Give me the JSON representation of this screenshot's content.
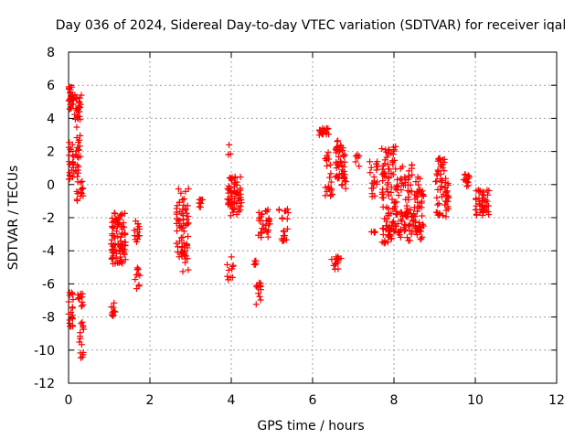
{
  "chart_data": {
    "type": "scatter",
    "title": "Day 036 of 2024, Sidereal Day-to-day VTEC variation (SDTVAR) for receiver iqal",
    "xlabel": "GPS time / hours",
    "ylabel": "SDTVAR / TECUs",
    "xlim": [
      0,
      12
    ],
    "ylim": [
      -12,
      8
    ],
    "xticks": [
      0,
      2,
      4,
      6,
      8,
      10,
      12
    ],
    "yticks": [
      -12,
      -10,
      -8,
      -6,
      -4,
      -2,
      0,
      2,
      4,
      6,
      8
    ],
    "grid": true,
    "marker": "+",
    "color": "#ff0000",
    "series": [
      {
        "name": "SDTVAR",
        "clusters": [
          {
            "x": [
              0.0,
              0.12
            ],
            "y": [
              4.5,
              6.0
            ],
            "n": 30
          },
          {
            "x": [
              0.15,
              0.32
            ],
            "y": [
              3.8,
              5.5
            ],
            "n": 25
          },
          {
            "x": [
              0.0,
              0.25
            ],
            "y": [
              0.3,
              2.6
            ],
            "n": 35
          },
          {
            "x": [
              0.18,
              0.38
            ],
            "y": [
              -1.0,
              0.2
            ],
            "n": 15
          },
          {
            "x": [
              0.2,
              0.3
            ],
            "y": [
              1.5,
              3.5
            ],
            "n": 10
          },
          {
            "x": [
              0.0,
              0.12
            ],
            "y": [
              -8.6,
              -6.2
            ],
            "n": 20
          },
          {
            "x": [
              0.22,
              0.38
            ],
            "y": [
              -7.5,
              -6.6
            ],
            "n": 12
          },
          {
            "x": [
              0.25,
              0.38
            ],
            "y": [
              -11.5,
              -8.2
            ],
            "n": 15
          },
          {
            "x": [
              1.05,
              1.4
            ],
            "y": [
              -4.8,
              -1.6
            ],
            "n": 90
          },
          {
            "x": [
              1.05,
              1.15
            ],
            "y": [
              -8.0,
              -7.1
            ],
            "n": 10
          },
          {
            "x": [
              1.6,
              1.75
            ],
            "y": [
              -3.5,
              -2.2
            ],
            "n": 15
          },
          {
            "x": [
              1.6,
              1.75
            ],
            "y": [
              -6.5,
              -5.0
            ],
            "n": 10
          },
          {
            "x": [
              2.65,
              2.95
            ],
            "y": [
              -4.5,
              -0.2
            ],
            "n": 55
          },
          {
            "x": [
              2.75,
              2.95
            ],
            "y": [
              -5.3,
              -3.5
            ],
            "n": 15
          },
          {
            "x": [
              3.2,
              3.3
            ],
            "y": [
              -1.4,
              -0.9
            ],
            "n": 8
          },
          {
            "x": [
              3.9,
              4.25
            ],
            "y": [
              -2.0,
              0.5
            ],
            "n": 60
          },
          {
            "x": [
              3.9,
              4.05
            ],
            "y": [
              -5.8,
              -4.0
            ],
            "n": 10
          },
          {
            "x": [
              3.92,
              3.98
            ],
            "y": [
              1.8,
              2.7
            ],
            "n": 3
          },
          {
            "x": [
              4.55,
              4.65
            ],
            "y": [
              -5.0,
              -4.6
            ],
            "n": 5
          },
          {
            "x": [
              4.6,
              4.75
            ],
            "y": [
              -7.3,
              -5.9
            ],
            "n": 12
          },
          {
            "x": [
              4.65,
              4.95
            ],
            "y": [
              -3.3,
              -1.5
            ],
            "n": 30
          },
          {
            "x": [
              5.15,
              5.4
            ],
            "y": [
              -3.5,
              -1.4
            ],
            "n": 20
          },
          {
            "x": [
              6.15,
              6.4
            ],
            "y": [
              2.9,
              3.4
            ],
            "n": 20
          },
          {
            "x": [
              6.3,
              6.5
            ],
            "y": [
              -0.7,
              0.3
            ],
            "n": 12
          },
          {
            "x": [
              6.3,
              6.45
            ],
            "y": [
              0.3,
              2.2
            ],
            "n": 10
          },
          {
            "x": [
              6.45,
              6.7
            ],
            "y": [
              -5.2,
              -4.3
            ],
            "n": 15
          },
          {
            "x": [
              6.55,
              6.8
            ],
            "y": [
              0.2,
              2.8
            ],
            "n": 40
          },
          {
            "x": [
              6.7,
              6.85
            ],
            "y": [
              -0.4,
              1.0
            ],
            "n": 10
          },
          {
            "x": [
              7.05,
              7.15
            ],
            "y": [
              1.1,
              1.8
            ],
            "n": 6
          },
          {
            "x": [
              7.4,
              7.6
            ],
            "y": [
              -0.8,
              1.4
            ],
            "n": 20
          },
          {
            "x": [
              7.4,
              7.55
            ],
            "y": [
              -3.0,
              -2.8
            ],
            "n": 4
          },
          {
            "x": [
              7.7,
              8.05
            ],
            "y": [
              -3.6,
              2.3
            ],
            "n": 90
          },
          {
            "x": [
              7.8,
              8.5
            ],
            "y": [
              -3.2,
              -1.6
            ],
            "n": 40
          },
          {
            "x": [
              8.05,
              8.45
            ],
            "y": [
              -3.5,
              1.2
            ],
            "n": 60
          },
          {
            "x": [
              8.5,
              8.75
            ],
            "y": [
              -2.6,
              0.5
            ],
            "n": 35
          },
          {
            "x": [
              8.5,
              8.7
            ],
            "y": [
              -3.5,
              -2.4
            ],
            "n": 15
          },
          {
            "x": [
              9.0,
              9.35
            ],
            "y": [
              -2.0,
              1.7
            ],
            "n": 60
          },
          {
            "x": [
              9.7,
              9.85
            ],
            "y": [
              -0.3,
              0.7
            ],
            "n": 12
          },
          {
            "x": [
              10.0,
              10.35
            ],
            "y": [
              -1.9,
              -0.3
            ],
            "n": 45
          }
        ]
      }
    ]
  }
}
